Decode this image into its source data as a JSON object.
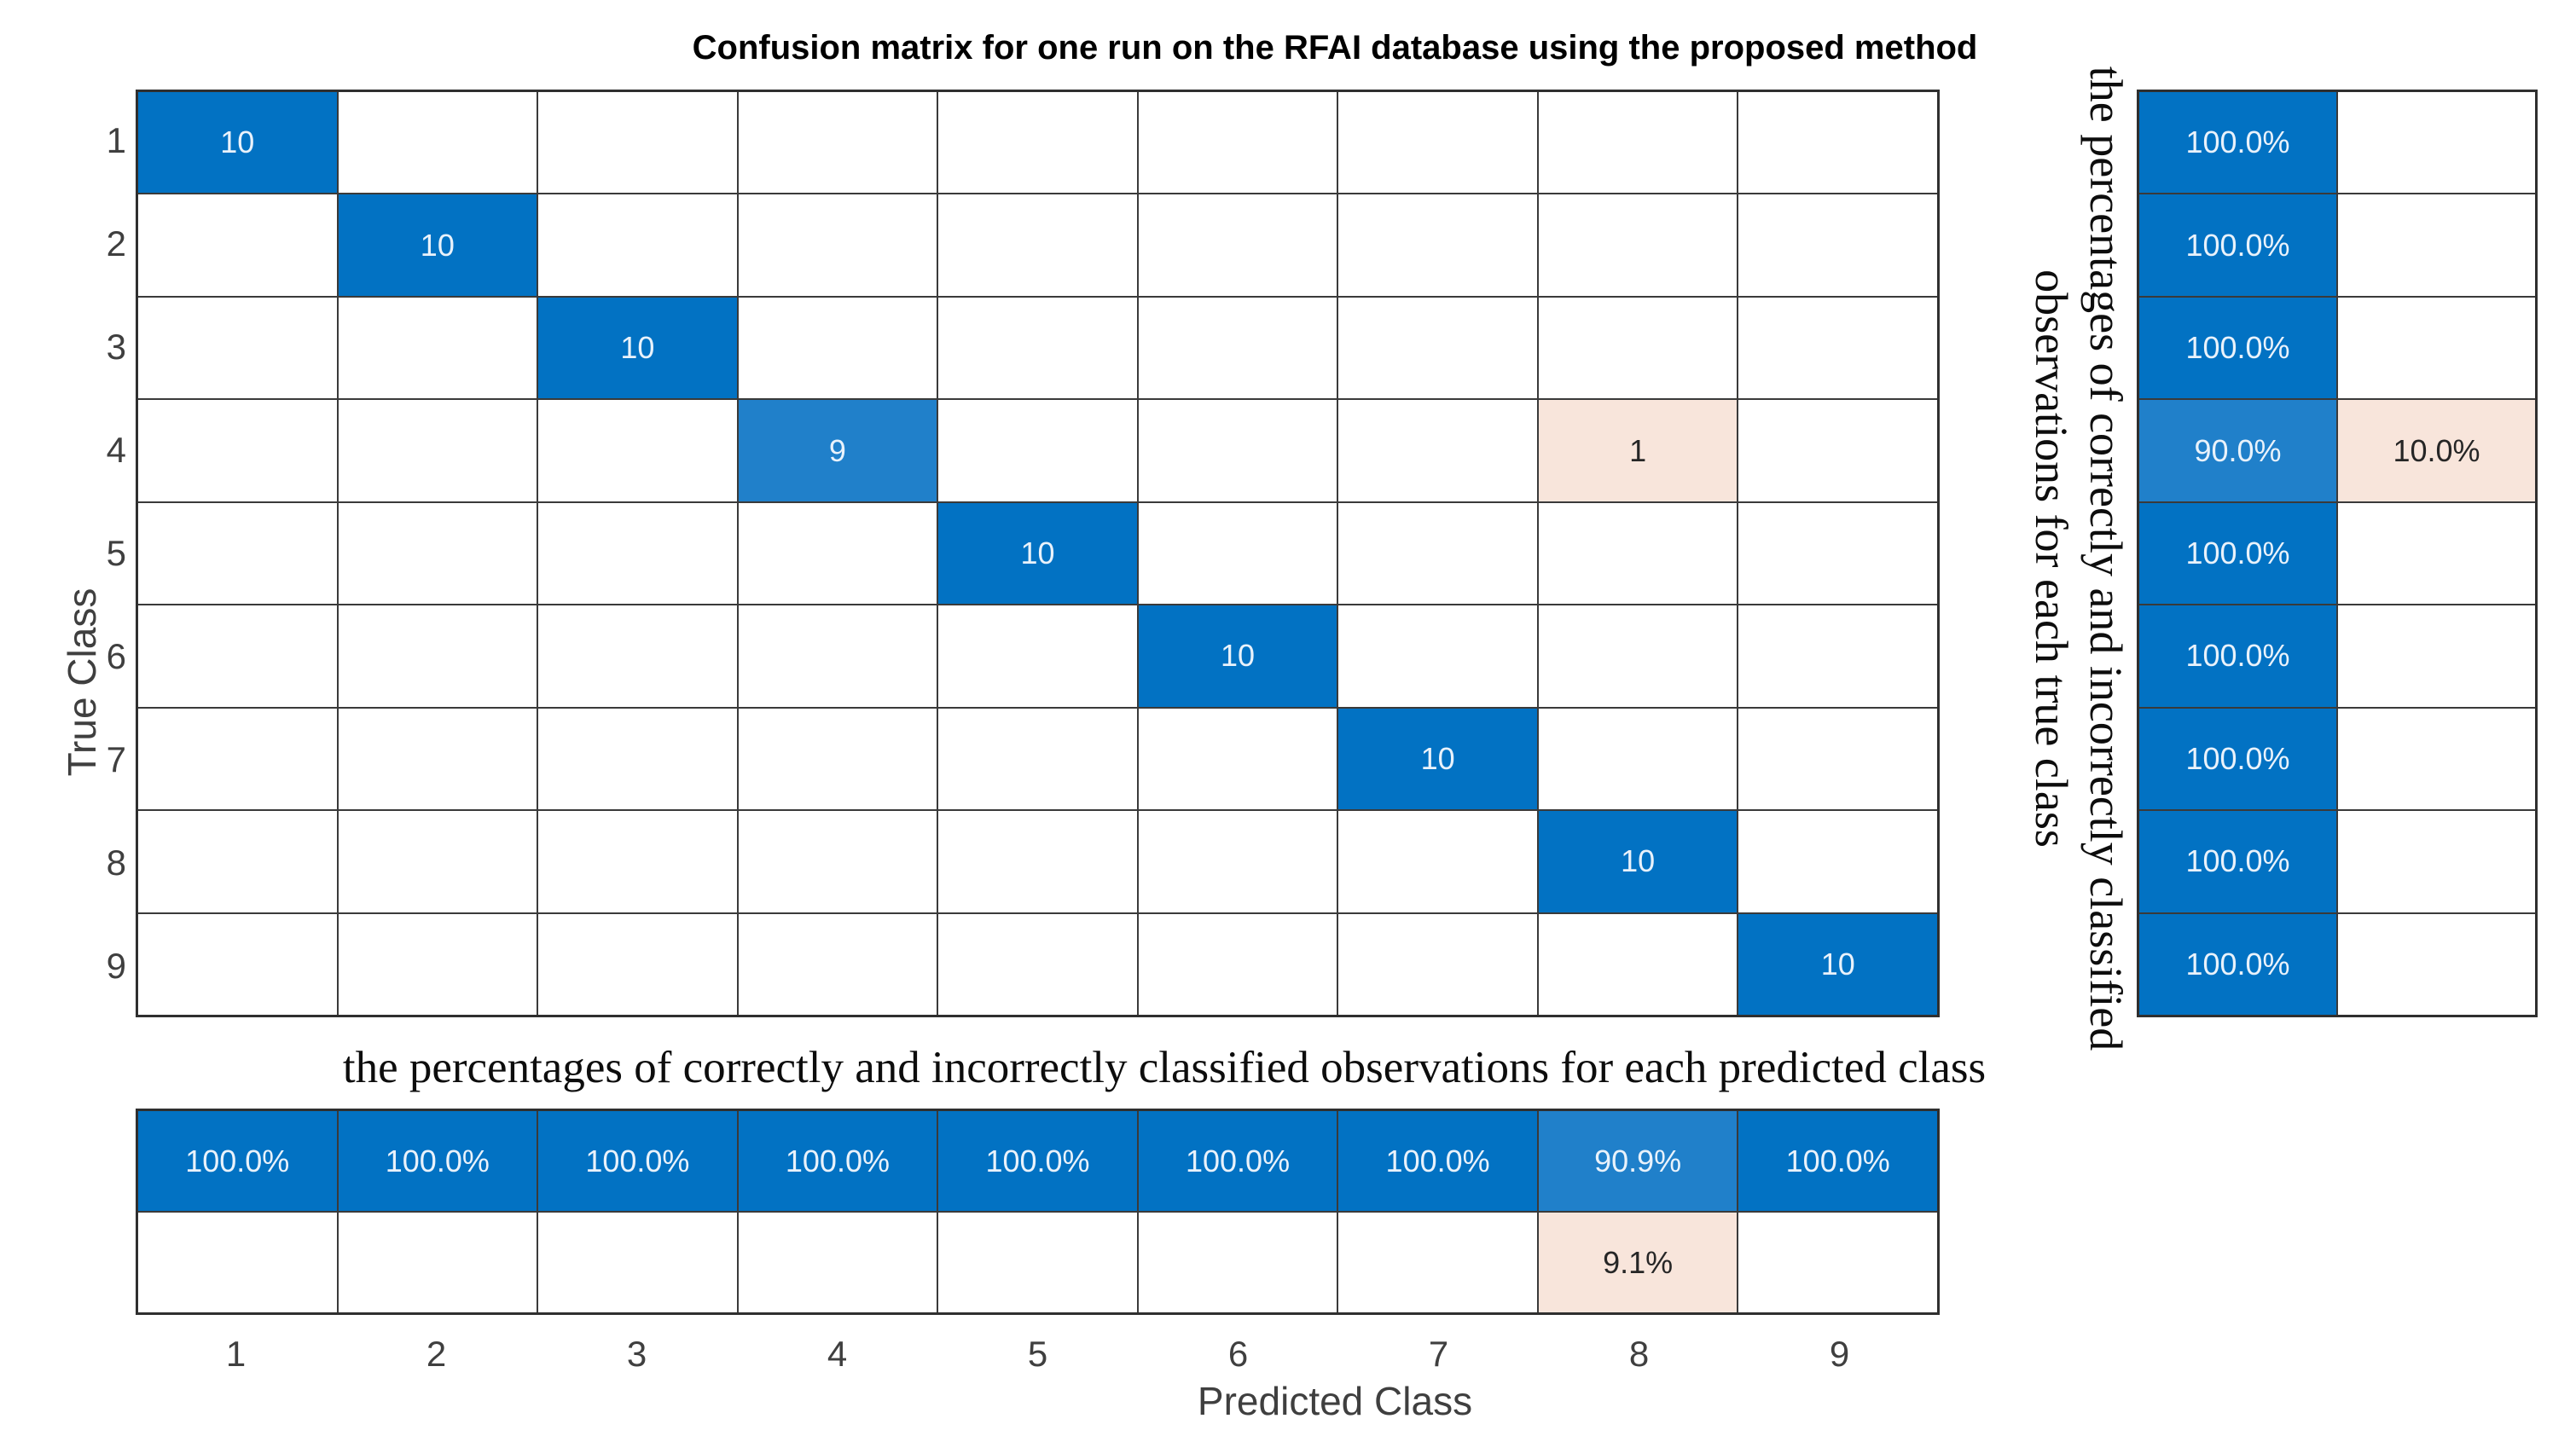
{
  "colors": {
    "diagonal": "#0272C3",
    "diagonal_light": "#2080CA",
    "off_diagonal": "#F8E5DB",
    "grid_line": "#3A3A3A",
    "text_on_blue": "#E9F2FB",
    "text_dark": "#262626",
    "tick_text": "#3F3F3F"
  },
  "annotations": {
    "right_label_line1": "the percentages of correctly and incorrectly classified",
    "right_label_line2": "observations for each true class",
    "bottom_label": "the percentages of correctly and incorrectly classified observations for each predicted class"
  },
  "chart_data": {
    "type": "heatmap",
    "title": "Confusion matrix for one run on the RFAI database using the proposed method",
    "xlabel": "Predicted Class",
    "ylabel": "True Class",
    "classes": [
      "1",
      "2",
      "3",
      "4",
      "5",
      "6",
      "7",
      "8",
      "9"
    ],
    "matrix": [
      [
        10,
        null,
        null,
        null,
        null,
        null,
        null,
        null,
        null
      ],
      [
        null,
        10,
        null,
        null,
        null,
        null,
        null,
        null,
        null
      ],
      [
        null,
        null,
        10,
        null,
        null,
        null,
        null,
        null,
        null
      ],
      [
        null,
        null,
        null,
        9,
        null,
        null,
        null,
        1,
        null
      ],
      [
        null,
        null,
        null,
        null,
        10,
        null,
        null,
        null,
        null
      ],
      [
        null,
        null,
        null,
        null,
        null,
        10,
        null,
        null,
        null
      ],
      [
        null,
        null,
        null,
        null,
        null,
        null,
        10,
        null,
        null
      ],
      [
        null,
        null,
        null,
        null,
        null,
        null,
        null,
        10,
        null
      ],
      [
        null,
        null,
        null,
        null,
        null,
        null,
        null,
        null,
        10
      ]
    ],
    "row_summary": {
      "correct": [
        "100.0%",
        "100.0%",
        "100.0%",
        "90.0%",
        "100.0%",
        "100.0%",
        "100.0%",
        "100.0%",
        "100.0%"
      ],
      "incorrect": [
        "",
        "",
        "",
        "10.0%",
        "",
        "",
        "",
        "",
        ""
      ]
    },
    "col_summary": {
      "correct": [
        "100.0%",
        "100.0%",
        "100.0%",
        "100.0%",
        "100.0%",
        "100.0%",
        "100.0%",
        "90.9%",
        "100.0%"
      ],
      "incorrect": [
        "",
        "",
        "",
        "",
        "",
        "",
        "",
        "9.1%",
        ""
      ]
    }
  }
}
